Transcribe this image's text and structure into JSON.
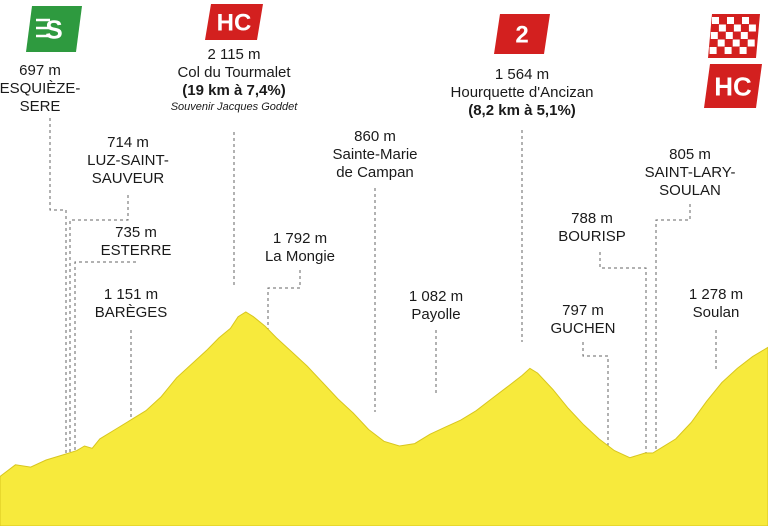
{
  "chart_data": {
    "type": "area",
    "colors": {
      "fill": "#f7ea3c",
      "stroke": "#d8c61e",
      "guide": "#666666",
      "climb_badge": "#d3201f",
      "sprint_badge": "#2e9a3f"
    },
    "profile": [
      [
        0,
        0.9
      ],
      [
        0.02,
        0.85
      ],
      [
        0.04,
        0.86
      ],
      [
        0.06,
        0.83
      ],
      [
        0.08,
        0.81
      ],
      [
        0.1,
        0.79
      ],
      [
        0.11,
        0.77
      ],
      [
        0.12,
        0.78
      ],
      [
        0.13,
        0.74
      ],
      [
        0.15,
        0.7
      ],
      [
        0.17,
        0.66
      ],
      [
        0.19,
        0.62
      ],
      [
        0.21,
        0.56
      ],
      [
        0.23,
        0.48
      ],
      [
        0.25,
        0.42
      ],
      [
        0.27,
        0.36
      ],
      [
        0.285,
        0.31
      ],
      [
        0.3,
        0.27
      ],
      [
        0.31,
        0.22
      ],
      [
        0.32,
        0.2
      ],
      [
        0.33,
        0.22
      ],
      [
        0.345,
        0.26
      ],
      [
        0.36,
        0.31
      ],
      [
        0.38,
        0.37
      ],
      [
        0.4,
        0.43
      ],
      [
        0.42,
        0.5
      ],
      [
        0.44,
        0.57
      ],
      [
        0.46,
        0.63
      ],
      [
        0.48,
        0.7
      ],
      [
        0.5,
        0.75
      ],
      [
        0.52,
        0.77
      ],
      [
        0.54,
        0.76
      ],
      [
        0.56,
        0.72
      ],
      [
        0.58,
        0.69
      ],
      [
        0.6,
        0.66
      ],
      [
        0.62,
        0.62
      ],
      [
        0.64,
        0.57
      ],
      [
        0.66,
        0.52
      ],
      [
        0.68,
        0.47
      ],
      [
        0.69,
        0.44
      ],
      [
        0.7,
        0.46
      ],
      [
        0.72,
        0.53
      ],
      [
        0.74,
        0.61
      ],
      [
        0.76,
        0.68
      ],
      [
        0.78,
        0.74
      ],
      [
        0.8,
        0.79
      ],
      [
        0.82,
        0.82
      ],
      [
        0.84,
        0.8
      ],
      [
        0.85,
        0.8
      ],
      [
        0.86,
        0.78
      ],
      [
        0.88,
        0.74
      ],
      [
        0.9,
        0.67
      ],
      [
        0.92,
        0.58
      ],
      [
        0.94,
        0.5
      ],
      [
        0.96,
        0.44
      ],
      [
        0.98,
        0.39
      ],
      [
        1.0,
        0.35
      ]
    ],
    "points": [
      {
        "id": "esquieze",
        "altitude": "697 m",
        "name": "ESQUIÈZE-\nSERE",
        "badge": "S",
        "badge_type": "sprint",
        "x": 0.06
      },
      {
        "id": "luz",
        "altitude": "714 m",
        "name": "LUZ-SAINT-\nSAUVEUR",
        "x": 0.065
      },
      {
        "id": "esterre",
        "altitude": "735 m",
        "name": "ESTERRE",
        "x": 0.07
      },
      {
        "id": "bareges",
        "altitude": "1 151 m",
        "name": "BARÈGES",
        "x": 0.17
      },
      {
        "id": "tourmalet",
        "altitude": "2 115 m",
        "name": "Col du Tourmalet",
        "sub": "(19 km à 7,4%)",
        "note": "Souvenir Jacques Goddet",
        "badge": "HC",
        "badge_type": "climb",
        "x": 0.305
      },
      {
        "id": "mongie",
        "altitude": "1 792 m",
        "name": "La Mongie",
        "x": 0.35
      },
      {
        "id": "sainte-marie",
        "altitude": "860 m",
        "name": "Sainte-Marie\nde Campan",
        "x": 0.49
      },
      {
        "id": "payolle",
        "altitude": "1 082 m",
        "name": "Payolle",
        "x": 0.565
      },
      {
        "id": "hourquette",
        "altitude": "1 564 m",
        "name": "Hourquette d'Ancizan",
        "sub": "(8,2 km à 5,1%)",
        "badge": "2",
        "badge_type": "climb",
        "x": 0.68
      },
      {
        "id": "guchen",
        "altitude": "797 m",
        "name": "GUCHEN",
        "x": 0.79
      },
      {
        "id": "bourisp",
        "altitude": "788 m",
        "name": "BOURISP",
        "x": 0.845
      },
      {
        "id": "saint-lary",
        "altitude": "805 m",
        "name": "SAINT-LARY-\nSOULAN",
        "x": 0.855
      },
      {
        "id": "soulan",
        "altitude": "1 278 m",
        "name": "Soulan",
        "x": 0.93
      },
      {
        "id": "finish",
        "badge": "HC",
        "badge_type": "climb_finish",
        "x": 0.96
      }
    ]
  }
}
